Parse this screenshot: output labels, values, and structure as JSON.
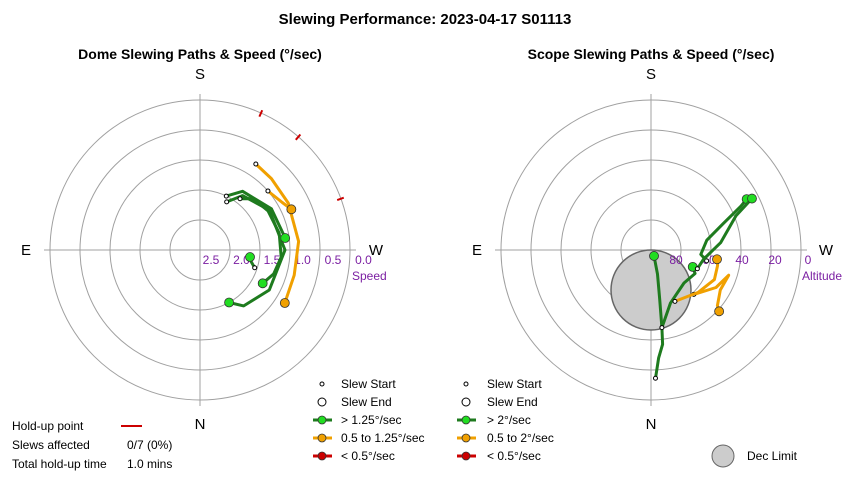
{
  "figure": {
    "title": "Slewing Performance: 2023-04-17  S01113"
  },
  "colors": {
    "grid": "#a0a0a0",
    "fast": "#1e7b1e",
    "fast_marker": "#22dd22",
    "mid": "#f0a000",
    "mid_marker": "#f0a000",
    "slow": "#cc0000",
    "dec_limit": "#cccccc",
    "axis_unit": "#7b1fa2"
  },
  "chart_data": [
    {
      "type": "polar-paths",
      "title": "Dome Slewing Paths & Speed (°/sec)",
      "directions": {
        "top": "S",
        "bottom": "N",
        "left": "E",
        "right": "W"
      },
      "radial_axis": {
        "label": "Speed",
        "ticks": [
          "2.5",
          "2.0",
          "1.5",
          "1.0",
          "0.5",
          "0.0"
        ],
        "range": [
          3.0,
          0.0
        ],
        "inward_is_higher": true
      },
      "paths": [
        {
          "speed_class": "fast",
          "start": {
            "az": 29,
            "speed": 1.9
          },
          "points": [
            [
              29,
              1.9
            ],
            [
              38,
              1.62
            ],
            [
              60,
              1.4
            ],
            [
              90,
              1.3
            ],
            [
              120,
              1.4
            ],
            [
              142,
              1.58
            ],
            [
              151,
              1.8
            ]
          ],
          "end": {
            "az": 151,
            "speed": 1.8
          }
        },
        {
          "speed_class": "fast",
          "start": {
            "az": 26,
            "speed": 1.8
          },
          "points": [
            [
              26,
              1.8
            ],
            [
              36,
              1.55
            ],
            [
              60,
              1.35
            ],
            [
              82,
              1.28
            ]
          ],
          "end": {
            "az": 82,
            "speed": 1.28
          }
        },
        {
          "speed_class": "fast",
          "start": {
            "az": 108,
            "speed": 1.85
          },
          "points": [
            [
              108,
              1.85
            ],
            [
              103,
              1.95
            ],
            [
              98,
              1.99
            ]
          ],
          "end": {
            "az": 98,
            "speed": 1.99
          }
        },
        {
          "speed_class": "fast",
          "start": {
            "az": 38,
            "speed": 1.7
          },
          "points": [
            [
              38,
              1.7
            ],
            [
              46,
              1.52
            ],
            [
              60,
              1.43
            ],
            [
              78,
              1.38
            ],
            [
              95,
              1.37
            ],
            [
              108,
              1.45
            ],
            [
              118,
              1.58
            ]
          ],
          "end": {
            "az": 118,
            "speed": 1.58
          }
        },
        {
          "speed_class": "mid",
          "start": {
            "az": 33,
            "speed": 0.95
          },
          "points": [
            [
              33,
              0.95
            ],
            [
              45,
              0.98
            ],
            [
              62,
              1.0
            ],
            [
              85,
              1.02
            ],
            [
              105,
              1.05
            ],
            [
              122,
              1.0
            ]
          ],
          "end": {
            "az": 122,
            "speed": 1.0
          }
        },
        {
          "speed_class": "mid",
          "start": {
            "az": 49,
            "speed": 1.2
          },
          "points": [
            [
              49,
              1.2
            ],
            [
              60,
              1.1
            ],
            [
              66,
              1.0
            ]
          ],
          "end": {
            "az": 66,
            "speed": 1.0
          }
        }
      ],
      "holdup_ticks_az": [
        24,
        41,
        70
      ],
      "legend": [
        "Slew Start",
        "Slew End",
        "> 1.25°/sec",
        "0.5 to 1.25°/sec",
        "< 0.5°/sec"
      ]
    },
    {
      "type": "polar-paths",
      "title": "Scope Slewing Paths & Speed (°/sec)",
      "directions": {
        "top": "S",
        "bottom": "N",
        "left": "E",
        "right": "W"
      },
      "radial_axis": {
        "label": "Altitude",
        "ticks": [
          "80",
          "60",
          "40",
          "20",
          "0"
        ],
        "range": [
          90,
          0
        ]
      },
      "paths": [
        {
          "speed_class": "fast",
          "start": {
            "az": 178,
            "alt": 13
          },
          "points": [
            [
              178,
              13
            ],
            [
              176,
              25
            ],
            [
              173,
              33
            ],
            [
              172,
              43
            ],
            [
              170,
              60
            ],
            [
              165,
              75
            ],
            [
              153,
              86
            ]
          ],
          "end": {
            "az": 153,
            "alt": 86
          }
        },
        {
          "speed_class": "fast",
          "start": {
            "az": 172,
            "alt": 43
          },
          "points": [
            [
              172,
              43
            ],
            [
              160,
              56
            ],
            [
              135,
              62
            ],
            [
              118,
              60
            ],
            [
              112,
              63
            ]
          ],
          "end": {
            "az": 112,
            "alt": 63
          }
        },
        {
          "speed_class": "fast",
          "start": {
            "az": 101,
            "alt": 56
          },
          "points": [
            [
              101,
              56
            ],
            [
              95,
              60
            ],
            [
              80,
              56
            ],
            [
              70,
              44
            ],
            [
              64,
              30
            ],
            [
              62,
              25
            ]
          ],
          "end": {
            "az": 62,
            "alt": 25
          }
        },
        {
          "speed_class": "fast",
          "start": {
            "az": 112,
            "alt": 60
          },
          "points": [
            [
              112,
              60
            ],
            [
              100,
              58
            ],
            [
              84,
              48
            ],
            [
              68,
              35
            ],
            [
              63,
              22
            ]
          ],
          "end": {
            "az": 63,
            "alt": 22
          }
        },
        {
          "speed_class": "mid",
          "start": {
            "az": 136,
            "alt": 53
          },
          "points": [
            [
              136,
              53
            ],
            [
              120,
              45
            ],
            [
              108,
              41
            ],
            [
              120,
              42
            ],
            [
              130,
              38
            ],
            [
              132,
              35
            ]
          ],
          "end": {
            "az": 132,
            "alt": 35
          }
        },
        {
          "speed_class": "mid",
          "start": {
            "az": 155,
            "alt": 56
          },
          "points": [
            [
              155,
              56
            ],
            [
              132,
              52
            ],
            [
              115,
              48
            ],
            [
              103,
              49
            ],
            [
              98,
              50
            ]
          ],
          "end": {
            "az": 98,
            "alt": 50
          }
        }
      ],
      "dec_limit": {
        "az": 0,
        "alt": 66,
        "radius_alt": 24
      },
      "legend": [
        "Slew Start",
        "Slew End",
        "> 2°/sec",
        "0.5 to 2°/sec",
        "< 0.5°/sec",
        "Dec Limit"
      ]
    }
  ],
  "footer": {
    "holdup_label": "Hold-up point",
    "slews_label": "Slews affected",
    "slews_value": "0/7 (0%)",
    "total_label": "Total hold-up time",
    "total_value": "1.0 mins"
  }
}
